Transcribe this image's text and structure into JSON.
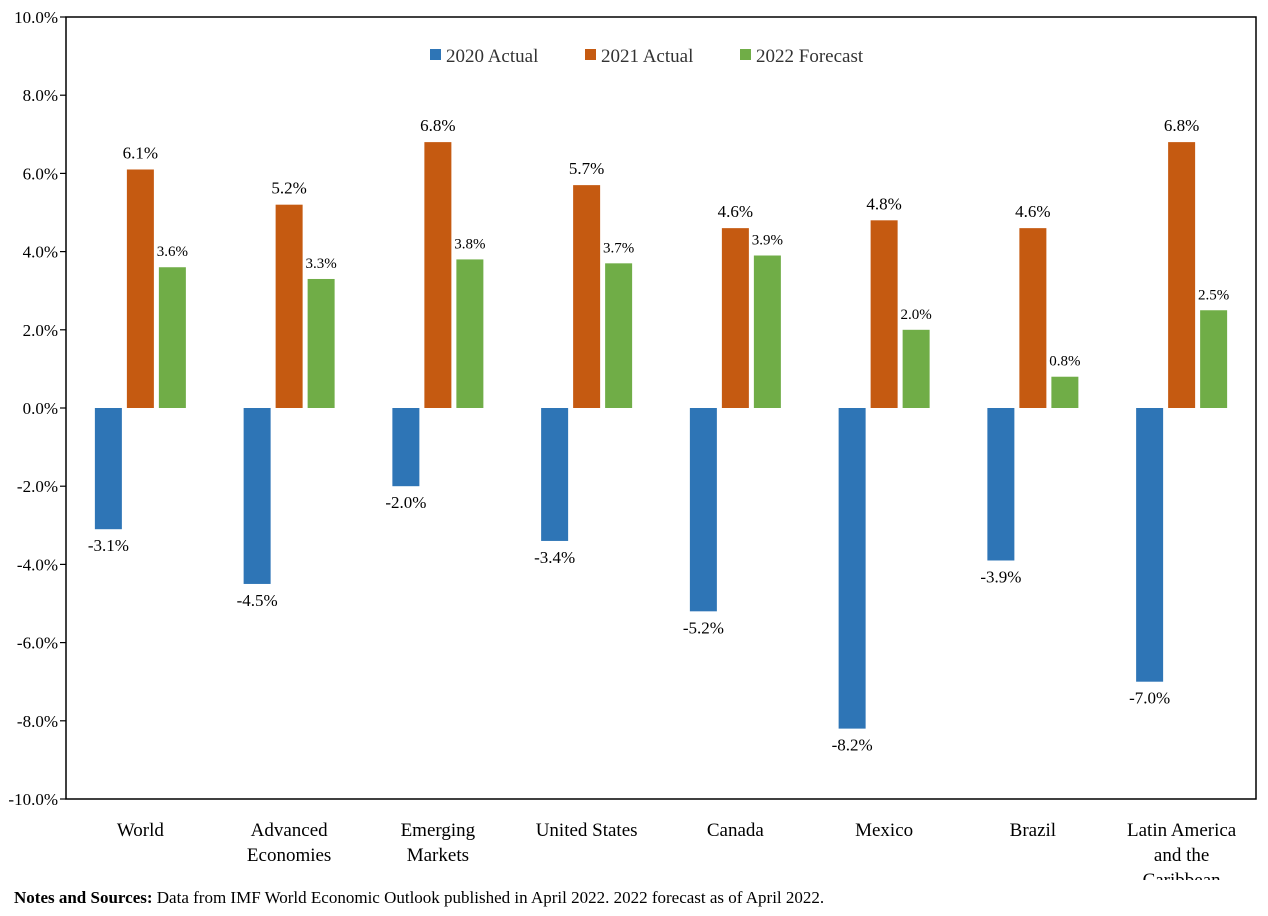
{
  "chart_data": {
    "type": "bar",
    "categories": [
      [
        "World"
      ],
      [
        "Advanced",
        "Economies"
      ],
      [
        "Emerging",
        "Markets"
      ],
      [
        "United States"
      ],
      [
        "Canada"
      ],
      [
        "Mexico"
      ],
      [
        "Brazil"
      ],
      [
        "Latin America",
        "and the",
        "Caribbean"
      ]
    ],
    "series": [
      {
        "name": "2020 Actual",
        "color": "#2e75b6",
        "values": [
          -3.1,
          -4.5,
          -2.0,
          -3.4,
          -5.2,
          -8.2,
          -3.9,
          -7.0
        ]
      },
      {
        "name": "2021 Actual",
        "color": "#c55a11",
        "values": [
          6.1,
          5.2,
          6.8,
          5.7,
          4.6,
          4.8,
          4.6,
          6.8
        ]
      },
      {
        "name": "2022 Forecast",
        "color": "#70ad47",
        "values": [
          3.6,
          3.3,
          3.8,
          3.7,
          3.9,
          2.0,
          0.8,
          2.5
        ]
      }
    ],
    "ylim": [
      -10,
      10
    ],
    "yticks": [
      "10.0%",
      "8.0%",
      "6.0%",
      "4.0%",
      "2.0%",
      "0.0%",
      "-2.0%",
      "-4.0%",
      "-6.0%",
      "-8.0%",
      "-10.0%"
    ],
    "legend_position": "top-center",
    "grid": false
  },
  "notes": {
    "label": "Notes and Sources:",
    "text": " Data from IMF World Economic Outlook published in April 2022. 2022 forecast as of April 2022."
  }
}
